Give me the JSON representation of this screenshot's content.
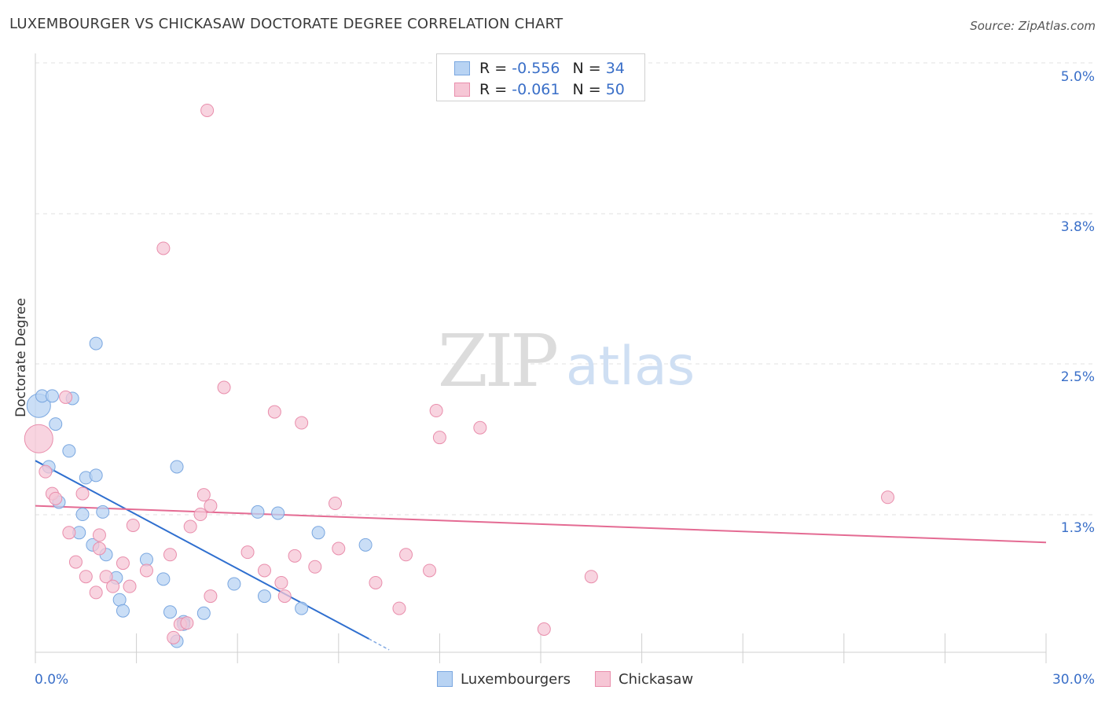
{
  "header": {
    "title": "LUXEMBOURGER VS CHICKASAW DOCTORATE DEGREE CORRELATION CHART",
    "source": "Source: ZipAtlas.com"
  },
  "watermark": {
    "zip": "ZIP",
    "atlas": "atlas"
  },
  "legend": {
    "rows": [
      {
        "r_label": "R =",
        "r_value": "-0.556",
        "n_label": "N =",
        "n_value": "34"
      },
      {
        "r_label": "R =",
        "r_value": "-0.061",
        "n_label": "N =",
        "n_value": "50"
      }
    ],
    "bottom": [
      "Luxembourgers",
      "Chickasaw"
    ]
  },
  "colors": {
    "blue_fill": "#b8d3f3",
    "blue_stroke": "#7aa7e0",
    "blue_line": "#2f6fcf",
    "pink_fill": "#f6c6d5",
    "pink_stroke": "#e98eac",
    "pink_line": "#e46b93",
    "tick_label": "#3a6fc8"
  },
  "chart_data": {
    "type": "scatter",
    "title": "LUXEMBOURGER VS CHICKASAW DOCTORATE DEGREE CORRELATION CHART",
    "xlabel": "",
    "ylabel": "Doctorate Degree",
    "xlim": [
      0,
      30
    ],
    "ylim": [
      0,
      5.1
    ],
    "x_tick_labels": [
      "0.0%",
      "30.0%"
    ],
    "y_ticks": [
      1.3,
      2.5,
      3.8,
      5.0
    ],
    "y_tick_labels": [
      "1.3%",
      "2.5%",
      "3.8%",
      "5.0%"
    ],
    "series": [
      {
        "name": "Luxembourgers",
        "color": "#b8d3f3",
        "points": [
          [
            0.1,
            2.02
          ],
          [
            0.2,
            2.1
          ],
          [
            0.5,
            2.1
          ],
          [
            0.6,
            1.87
          ],
          [
            1.1,
            2.08
          ],
          [
            0.4,
            1.52
          ],
          [
            1.0,
            1.65
          ],
          [
            1.8,
            2.53
          ],
          [
            0.7,
            1.23
          ],
          [
            1.5,
            1.43
          ],
          [
            1.8,
            1.45
          ],
          [
            4.2,
            1.52
          ],
          [
            1.4,
            1.13
          ],
          [
            2.0,
            1.15
          ],
          [
            1.3,
            0.98
          ],
          [
            1.7,
            0.88
          ],
          [
            2.1,
            0.8
          ],
          [
            3.3,
            0.76
          ],
          [
            7.2,
            1.14
          ],
          [
            6.6,
            1.15
          ],
          [
            8.4,
            0.98
          ],
          [
            9.8,
            0.88
          ],
          [
            2.4,
            0.61
          ],
          [
            3.8,
            0.6
          ],
          [
            5.9,
            0.56
          ],
          [
            6.8,
            0.46
          ],
          [
            2.5,
            0.43
          ],
          [
            2.6,
            0.34
          ],
          [
            4.0,
            0.33
          ],
          [
            5.0,
            0.32
          ],
          [
            7.9,
            0.36
          ],
          [
            4.4,
            0.25
          ],
          [
            4.2,
            0.09
          ],
          [
            4.4,
            0.23
          ]
        ]
      },
      {
        "name": "Chickasaw",
        "color": "#f6c6d5",
        "points": [
          [
            0.1,
            1.75
          ],
          [
            0.3,
            1.48
          ],
          [
            0.5,
            1.3
          ],
          [
            0.6,
            1.26
          ],
          [
            0.9,
            2.09
          ],
          [
            1.4,
            1.3
          ],
          [
            5.1,
            4.44
          ],
          [
            3.8,
            3.31
          ],
          [
            5.6,
            2.17
          ],
          [
            7.1,
            1.97
          ],
          [
            7.9,
            1.88
          ],
          [
            11.9,
            1.98
          ],
          [
            12.0,
            1.76
          ],
          [
            13.2,
            1.84
          ],
          [
            25.3,
            1.27
          ],
          [
            8.9,
            1.22
          ],
          [
            5.2,
            1.2
          ],
          [
            4.9,
            1.13
          ],
          [
            4.6,
            1.03
          ],
          [
            2.9,
            1.04
          ],
          [
            1.0,
            0.98
          ],
          [
            1.9,
            0.85
          ],
          [
            1.9,
            0.96
          ],
          [
            4.0,
            0.8
          ],
          [
            6.3,
            0.82
          ],
          [
            7.7,
            0.79
          ],
          [
            9.0,
            0.85
          ],
          [
            11.0,
            0.8
          ],
          [
            1.2,
            0.74
          ],
          [
            2.6,
            0.73
          ],
          [
            6.8,
            0.67
          ],
          [
            8.3,
            0.7
          ],
          [
            11.7,
            0.67
          ],
          [
            3.3,
            0.67
          ],
          [
            1.5,
            0.62
          ],
          [
            2.1,
            0.62
          ],
          [
            7.3,
            0.57
          ],
          [
            10.1,
            0.57
          ],
          [
            16.5,
            0.62
          ],
          [
            2.3,
            0.54
          ],
          [
            1.8,
            0.49
          ],
          [
            5.2,
            0.46
          ],
          [
            7.4,
            0.46
          ],
          [
            10.8,
            0.36
          ],
          [
            15.1,
            0.19
          ],
          [
            4.3,
            0.23
          ],
          [
            4.1,
            0.12
          ],
          [
            2.8,
            0.54
          ],
          [
            4.5,
            0.24
          ],
          [
            5.0,
            1.29
          ]
        ]
      }
    ],
    "trendlines": [
      {
        "name": "Luxembourgers",
        "x": [
          0.0,
          9.9
        ],
        "y": [
          1.57,
          0.11
        ],
        "dashed_to": [
          10.5,
          0.02
        ]
      },
      {
        "name": "Chickasaw",
        "x": [
          0.0,
          30.0
        ],
        "y": [
          1.2,
          0.9
        ]
      }
    ]
  }
}
